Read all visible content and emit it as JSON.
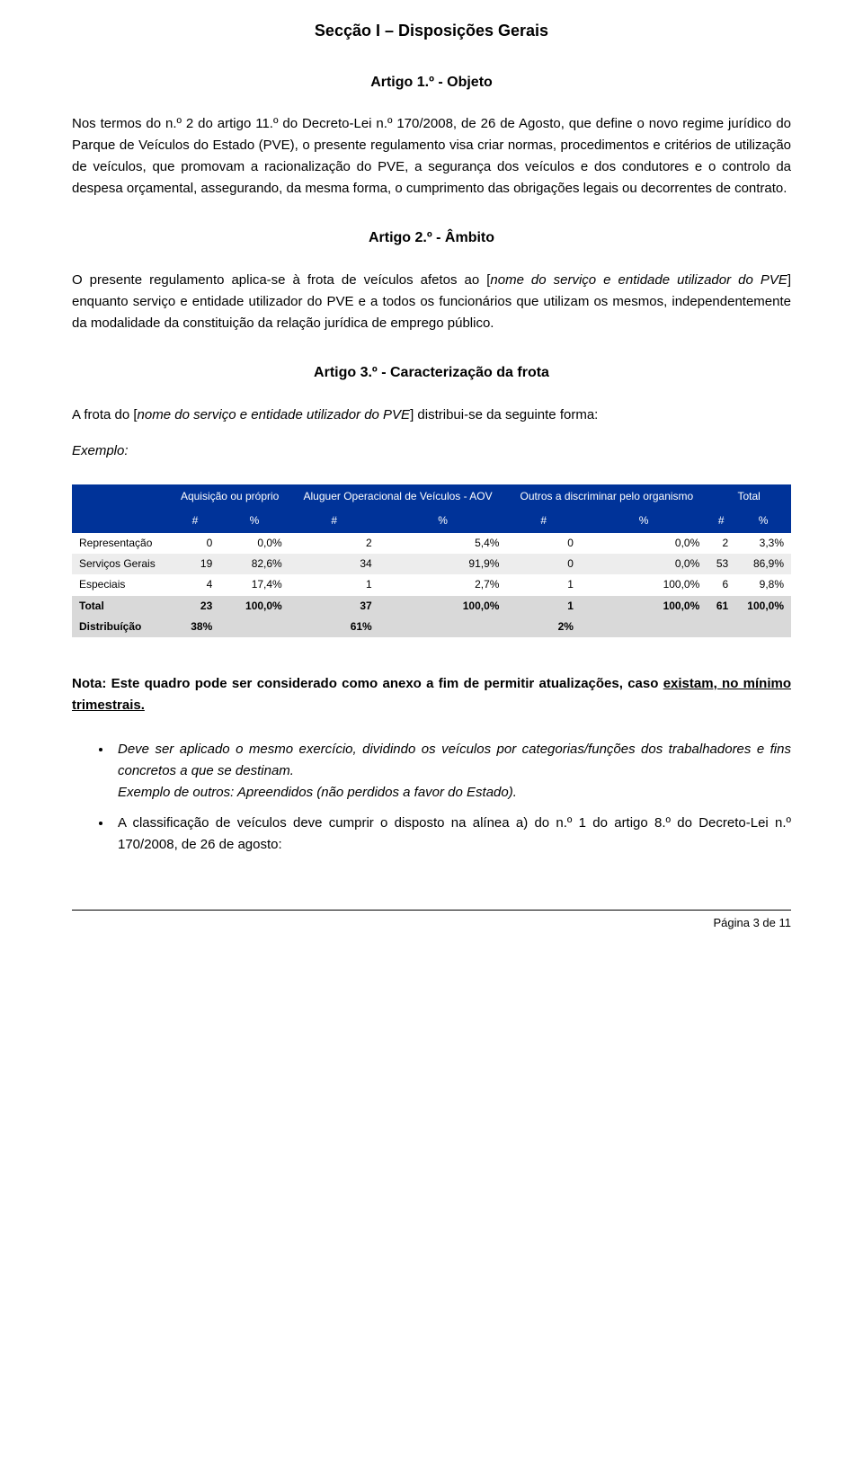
{
  "section_title": "Secção I – Disposições Gerais",
  "article1": {
    "title": "Artigo 1.º - Objeto",
    "para1": "Nos termos do n.º 2 do artigo 11.º do Decreto-Lei n.º 170/2008, de 26 de Agosto, que define o novo regime jurídico do Parque de Veículos do Estado (PVE), o presente regulamento visa criar normas, procedimentos e critérios de utilização de veículos, que promovam a racionalização do PVE, a segurança dos veículos e dos condutores e o controlo da despesa orçamental, assegurando, da mesma forma, o cumprimento das obrigações legais ou decorrentes de contrato."
  },
  "article2": {
    "title": "Artigo 2.º - Âmbito",
    "para1_a": "O presente regulamento aplica-se à frota de veículos afetos ao [",
    "para1_b": "nome do serviço e entidade utilizador do PVE",
    "para1_c": "] enquanto serviço e entidade utilizador do PVE e a todos os funcionários que utilizam os mesmos, independentemente da modalidade da constituição da relação jurídica de emprego público."
  },
  "article3": {
    "title": "Artigo 3.º - Caracterização da frota",
    "intro_a": "A frota do [",
    "intro_b": "nome do serviço e entidade utilizador do PVE",
    "intro_c": "] distribui-se da seguinte forma:",
    "exemplo": "Exemplo:"
  },
  "table": {
    "header_groups": [
      "Aquisição ou próprio",
      "Aluguer Operacional de Veículos - AOV",
      "Outros a discriminar pelo organismo",
      "Total"
    ],
    "sub_headers": [
      "#",
      "%",
      "#",
      "%",
      "#",
      "%",
      "#",
      "%"
    ],
    "colors": {
      "header_bg": "#003399",
      "header_fg": "#ffffff",
      "alt_bg": "#ededed",
      "total_bg": "#d9d9d9"
    },
    "rows": [
      {
        "label": "Representação",
        "vals": [
          "0",
          "0,0%",
          "2",
          "5,4%",
          "0",
          "0,0%",
          "2",
          "3,3%"
        ],
        "cls": ""
      },
      {
        "label": "Serviços Gerais",
        "vals": [
          "19",
          "82,6%",
          "34",
          "91,9%",
          "0",
          "0,0%",
          "53",
          "86,9%"
        ],
        "cls": "alt"
      },
      {
        "label": "Especiais",
        "vals": [
          "4",
          "17,4%",
          "1",
          "2,7%",
          "1",
          "100,0%",
          "6",
          "9,8%"
        ],
        "cls": ""
      },
      {
        "label": "Total",
        "vals": [
          "23",
          "100,0%",
          "37",
          "100,0%",
          "1",
          "100,0%",
          "61",
          "100,0%"
        ],
        "cls": "totalrow"
      },
      {
        "label": "Distribuíção",
        "vals": [
          "38%",
          "",
          "61%",
          "",
          "2%",
          "",
          "",
          ""
        ],
        "cls": "distrow"
      }
    ]
  },
  "note_a": "Nota: Este quadro pode ser considerado como anexo a fim de permitir atualizações, caso ",
  "note_b": "existam, no mínimo trimestrais.",
  "bullets": {
    "b1_a": "Deve ser aplicado o mesmo exercício, dividindo os veículos por categorias/funções dos trabalhadores e fins concretos a que se destinam.",
    "b1_b": "Exemplo de outros: Apreendidos (não perdidos a favor do Estado).",
    "b2": "A classificação de veículos deve cumprir o disposto na alínea a) do n.º 1 do artigo 8.º do Decreto-Lei n.º 170/2008, de 26 de agosto:"
  },
  "footer": "Página 3 de 11"
}
